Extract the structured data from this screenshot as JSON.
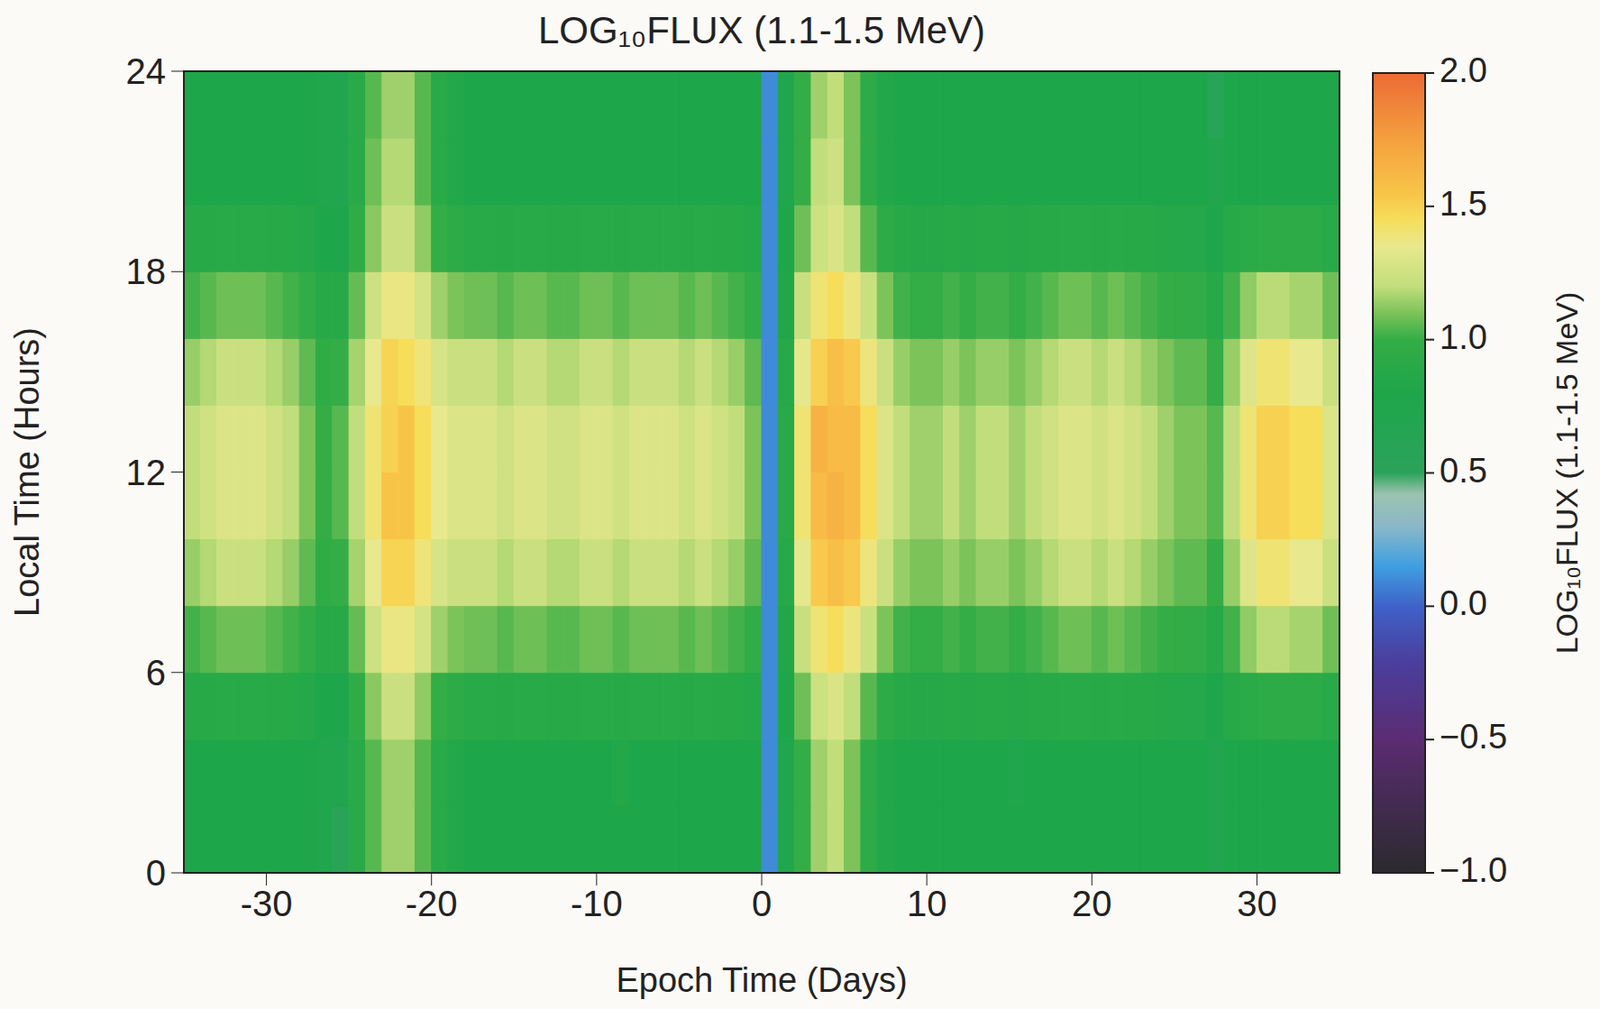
{
  "chart_data": {
    "type": "heatmap",
    "title": "LOG₁₀FLUX (1.1-1.5 MeV)",
    "x_label": "Epoch Time (Days)",
    "y_label": "Local Time (Hours)",
    "xlim": [
      -35,
      35
    ],
    "xticks": [
      -30,
      -20,
      -10,
      0,
      10,
      20,
      30
    ],
    "ylim": [
      0,
      24
    ],
    "yticks": [
      0,
      6,
      12,
      18,
      24
    ],
    "x_edges": [
      -35,
      -34,
      -33,
      -32,
      -31,
      -30,
      -29,
      -28,
      -27,
      -26,
      -25,
      -24,
      -23,
      -22,
      -21,
      -20,
      -19,
      -18,
      -17,
      -16,
      -15,
      -14,
      -13,
      -12,
      -11,
      -10,
      -9,
      -8,
      -7,
      -6,
      -5,
      -4,
      -3,
      -2,
      -1,
      0,
      1,
      2,
      3,
      4,
      5,
      6,
      7,
      8,
      9,
      10,
      11,
      12,
      13,
      14,
      15,
      16,
      17,
      18,
      19,
      20,
      21,
      22,
      23,
      24,
      25,
      26,
      27,
      28,
      29,
      30,
      31,
      32,
      33,
      34,
      35
    ],
    "y_edges": [
      0,
      2,
      4,
      6,
      8,
      10,
      12,
      14,
      16,
      18,
      20,
      22,
      24
    ],
    "values": [
      [
        0.8,
        0.8,
        0.8,
        0.8,
        0.8,
        0.8,
        0.8,
        0.8,
        0.75,
        0.55,
        0.9,
        1.05,
        1.15,
        1.15,
        1.05,
        0.9,
        0.85,
        0.8,
        0.8,
        0.8,
        0.8,
        0.8,
        0.8,
        0.8,
        0.8,
        0.8,
        0.8,
        0.8,
        0.8,
        0.8,
        0.8,
        0.8,
        0.8,
        0.8,
        0.8,
        0.1,
        0.75,
        1.0,
        1.15,
        1.2,
        1.1,
        0.95,
        0.85,
        0.8,
        0.8,
        0.8,
        0.8,
        0.8,
        0.8,
        0.8,
        0.8,
        0.8,
        0.8,
        0.8,
        0.8,
        0.8,
        0.8,
        0.8,
        0.8,
        0.8,
        0.8,
        0.8,
        0.7,
        0.8,
        0.8,
        0.8,
        0.8,
        0.8,
        0.8,
        0.8
      ],
      [
        0.8,
        0.8,
        0.8,
        0.8,
        0.8,
        0.8,
        0.8,
        0.8,
        0.75,
        0.7,
        0.9,
        1.05,
        1.15,
        1.15,
        1.05,
        0.9,
        0.85,
        0.8,
        0.8,
        0.8,
        0.8,
        0.8,
        0.8,
        0.8,
        0.8,
        0.8,
        0.85,
        0.8,
        0.8,
        0.8,
        0.8,
        0.8,
        0.8,
        0.8,
        0.8,
        0.1,
        0.75,
        1.0,
        1.15,
        1.2,
        1.1,
        0.95,
        0.85,
        0.8,
        0.8,
        0.8,
        0.8,
        0.8,
        0.8,
        0.8,
        0.75,
        0.8,
        0.8,
        0.8,
        0.8,
        0.8,
        0.8,
        0.8,
        0.8,
        0.8,
        0.8,
        0.8,
        0.7,
        0.8,
        0.8,
        0.8,
        0.8,
        0.8,
        0.8,
        0.8
      ],
      [
        0.88,
        0.89,
        0.9,
        0.9,
        0.9,
        0.89,
        0.88,
        0.86,
        0.8,
        0.77,
        0.96,
        1.12,
        1.23,
        1.23,
        1.13,
        0.99,
        0.94,
        0.9,
        0.9,
        0.89,
        0.9,
        0.9,
        0.89,
        0.89,
        0.9,
        0.9,
        0.89,
        0.9,
        0.9,
        0.9,
        0.89,
        0.9,
        0.89,
        0.88,
        0.86,
        0.1,
        0.78,
        1.08,
        1.24,
        1.29,
        1.2,
        1.05,
        0.94,
        0.88,
        0.87,
        0.87,
        0.88,
        0.87,
        0.88,
        0.88,
        0.87,
        0.88,
        0.89,
        0.9,
        0.9,
        0.89,
        0.9,
        0.89,
        0.88,
        0.87,
        0.86,
        0.86,
        0.77,
        0.88,
        0.92,
        0.94,
        0.94,
        0.93,
        0.93,
        0.9
      ],
      [
        1.02,
        1.05,
        1.08,
        1.08,
        1.08,
        1.05,
        1.02,
        0.97,
        0.89,
        0.89,
        1.07,
        1.24,
        1.37,
        1.37,
        1.27,
        1.15,
        1.1,
        1.08,
        1.08,
        1.05,
        1.08,
        1.08,
        1.05,
        1.05,
        1.08,
        1.08,
        1.05,
        1.08,
        1.08,
        1.08,
        1.05,
        1.08,
        1.05,
        1.02,
        0.97,
        0.1,
        0.83,
        1.22,
        1.4,
        1.45,
        1.38,
        1.23,
        1.1,
        1.02,
        0.99,
        0.99,
        1.02,
        0.99,
        1.02,
        1.02,
        0.99,
        1.02,
        1.05,
        1.08,
        1.08,
        1.05,
        1.08,
        1.05,
        1.02,
        0.99,
        0.97,
        0.97,
        0.89,
        1.02,
        1.13,
        1.19,
        1.19,
        1.16,
        1.16,
        1.08
      ],
      [
        1.14,
        1.18,
        1.23,
        1.23,
        1.23,
        1.18,
        1.14,
        1.06,
        0.96,
        1.0,
        1.16,
        1.35,
        1.49,
        1.49,
        1.39,
        1.28,
        1.23,
        1.23,
        1.23,
        1.18,
        1.23,
        1.23,
        1.18,
        1.18,
        1.23,
        1.23,
        1.18,
        1.23,
        1.23,
        1.23,
        1.18,
        1.23,
        1.18,
        1.14,
        1.06,
        0.1,
        0.88,
        1.34,
        1.53,
        1.58,
        1.53,
        1.38,
        1.23,
        1.14,
        1.1,
        1.1,
        1.14,
        1.1,
        1.14,
        1.14,
        1.1,
        1.14,
        1.18,
        1.23,
        1.23,
        1.18,
        1.23,
        1.18,
        1.14,
        1.1,
        1.06,
        1.06,
        1.0,
        1.14,
        1.31,
        1.4,
        1.4,
        1.35,
        1.35,
        1.23
      ],
      [
        1.2,
        1.25,
        1.3,
        1.3,
        1.3,
        1.25,
        1.2,
        1.1,
        1.0,
        1.05,
        1.2,
        1.4,
        1.55,
        1.55,
        1.45,
        1.35,
        1.3,
        1.3,
        1.3,
        1.25,
        1.3,
        1.3,
        1.25,
        1.25,
        1.3,
        1.3,
        1.25,
        1.3,
        1.3,
        1.3,
        1.25,
        1.3,
        1.25,
        1.2,
        1.1,
        0.1,
        0.9,
        1.4,
        1.6,
        1.65,
        1.6,
        1.45,
        1.3,
        1.2,
        1.15,
        1.15,
        1.2,
        1.15,
        1.2,
        1.2,
        1.15,
        1.2,
        1.25,
        1.3,
        1.3,
        1.25,
        1.3,
        1.25,
        1.2,
        1.15,
        1.1,
        1.1,
        1.05,
        1.2,
        1.4,
        1.5,
        1.5,
        1.45,
        1.45,
        1.3
      ],
      [
        1.2,
        1.25,
        1.3,
        1.3,
        1.3,
        1.25,
        1.2,
        1.1,
        1.0,
        1.05,
        1.2,
        1.4,
        1.5,
        1.55,
        1.45,
        1.35,
        1.3,
        1.3,
        1.3,
        1.25,
        1.3,
        1.3,
        1.25,
        1.25,
        1.3,
        1.3,
        1.25,
        1.3,
        1.3,
        1.3,
        1.25,
        1.3,
        1.25,
        1.2,
        1.1,
        0.1,
        0.9,
        1.4,
        1.65,
        1.6,
        1.6,
        1.45,
        1.3,
        1.2,
        1.15,
        1.15,
        1.2,
        1.15,
        1.2,
        1.2,
        1.15,
        1.2,
        1.25,
        1.3,
        1.3,
        1.25,
        1.3,
        1.25,
        1.2,
        1.15,
        1.1,
        1.1,
        1.05,
        1.2,
        1.4,
        1.5,
        1.5,
        1.45,
        1.45,
        1.3
      ],
      [
        1.14,
        1.18,
        1.23,
        1.23,
        1.23,
        1.18,
        1.14,
        1.06,
        0.96,
        1.0,
        1.16,
        1.35,
        1.49,
        1.45,
        1.39,
        1.28,
        1.23,
        1.23,
        1.23,
        1.18,
        1.23,
        1.23,
        1.18,
        1.18,
        1.23,
        1.23,
        1.18,
        1.23,
        1.23,
        1.23,
        1.18,
        1.23,
        1.18,
        1.14,
        1.06,
        0.1,
        0.88,
        1.34,
        1.5,
        1.58,
        1.53,
        1.38,
        1.23,
        1.14,
        1.1,
        1.1,
        1.14,
        1.1,
        1.14,
        1.14,
        1.1,
        1.14,
        1.18,
        1.23,
        1.23,
        1.18,
        1.23,
        1.18,
        1.14,
        1.1,
        1.06,
        1.06,
        1.0,
        1.14,
        1.31,
        1.4,
        1.4,
        1.35,
        1.35,
        1.23
      ],
      [
        1.02,
        1.05,
        1.08,
        1.08,
        1.08,
        1.05,
        1.02,
        0.97,
        0.89,
        0.89,
        1.07,
        1.24,
        1.37,
        1.37,
        1.27,
        1.15,
        1.1,
        1.08,
        1.08,
        1.05,
        1.08,
        1.08,
        1.05,
        1.05,
        1.08,
        1.08,
        1.05,
        1.08,
        1.08,
        1.08,
        1.05,
        1.08,
        1.05,
        1.02,
        0.97,
        0.1,
        0.83,
        1.22,
        1.4,
        1.45,
        1.38,
        1.23,
        1.1,
        1.02,
        0.99,
        0.99,
        1.02,
        0.99,
        1.02,
        1.02,
        0.99,
        1.02,
        1.05,
        1.08,
        1.08,
        1.05,
        1.08,
        1.05,
        1.02,
        0.99,
        0.97,
        0.97,
        0.89,
        1.02,
        1.13,
        1.19,
        1.19,
        1.16,
        1.16,
        1.08
      ],
      [
        0.88,
        0.89,
        0.9,
        0.9,
        0.9,
        0.89,
        0.88,
        0.86,
        0.8,
        0.77,
        0.96,
        1.12,
        1.23,
        1.23,
        1.13,
        0.99,
        0.94,
        0.9,
        0.9,
        0.89,
        0.9,
        0.9,
        0.89,
        0.89,
        0.9,
        0.9,
        0.89,
        0.9,
        0.9,
        0.9,
        0.89,
        0.9,
        0.89,
        0.88,
        0.86,
        0.1,
        0.78,
        1.08,
        1.24,
        1.29,
        1.2,
        1.05,
        0.94,
        0.88,
        0.87,
        0.87,
        0.88,
        0.87,
        0.88,
        0.88,
        0.87,
        0.88,
        0.89,
        0.9,
        0.9,
        0.89,
        0.9,
        0.89,
        0.88,
        0.87,
        0.86,
        0.86,
        0.77,
        0.88,
        0.92,
        0.94,
        0.94,
        0.93,
        0.93,
        0.9
      ],
      [
        0.8,
        0.8,
        0.8,
        0.8,
        0.8,
        0.8,
        0.8,
        0.8,
        0.75,
        0.7,
        0.9,
        1.08,
        1.18,
        1.18,
        1.05,
        0.9,
        0.85,
        0.8,
        0.8,
        0.8,
        0.8,
        0.8,
        0.8,
        0.8,
        0.8,
        0.8,
        0.8,
        0.8,
        0.8,
        0.8,
        0.8,
        0.8,
        0.8,
        0.8,
        0.8,
        0.1,
        0.75,
        1.0,
        1.2,
        1.24,
        1.1,
        0.95,
        0.85,
        0.8,
        0.8,
        0.8,
        0.8,
        0.8,
        0.8,
        0.8,
        0.8,
        0.8,
        0.8,
        0.8,
        0.8,
        0.8,
        0.8,
        0.8,
        0.8,
        0.8,
        0.8,
        0.8,
        0.7,
        0.8,
        0.8,
        0.8,
        0.8,
        0.8,
        0.8,
        0.8
      ],
      [
        0.8,
        0.8,
        0.8,
        0.8,
        0.8,
        0.8,
        0.8,
        0.8,
        0.75,
        0.7,
        0.9,
        1.05,
        1.15,
        1.15,
        1.05,
        0.9,
        0.85,
        0.8,
        0.8,
        0.8,
        0.8,
        0.8,
        0.8,
        0.8,
        0.8,
        0.8,
        0.8,
        0.8,
        0.8,
        0.8,
        0.8,
        0.8,
        0.8,
        0.8,
        0.8,
        0.1,
        0.75,
        1.0,
        1.15,
        1.2,
        1.1,
        0.95,
        0.85,
        0.8,
        0.8,
        0.8,
        0.8,
        0.8,
        0.8,
        0.8,
        0.8,
        0.8,
        0.8,
        0.8,
        0.8,
        0.8,
        0.8,
        0.8,
        0.8,
        0.8,
        0.8,
        0.8,
        0.6,
        0.8,
        0.8,
        0.8,
        0.8,
        0.8,
        0.8,
        0.8
      ]
    ],
    "colorbar": {
      "label": "LOG₁₀FLUX (1.1-1.5 MeV)",
      "range": [
        -1,
        2
      ],
      "ticks": [
        {
          "value": -1,
          "label": "−1.0"
        },
        {
          "value": -0.5,
          "label": "−0.5"
        },
        {
          "value": 0,
          "label": "0.0"
        },
        {
          "value": 0.5,
          "label": "0.5"
        },
        {
          "value": 1,
          "label": "1.0"
        },
        {
          "value": 1.5,
          "label": "1.5"
        },
        {
          "value": 2,
          "label": "2.0"
        }
      ]
    }
  }
}
